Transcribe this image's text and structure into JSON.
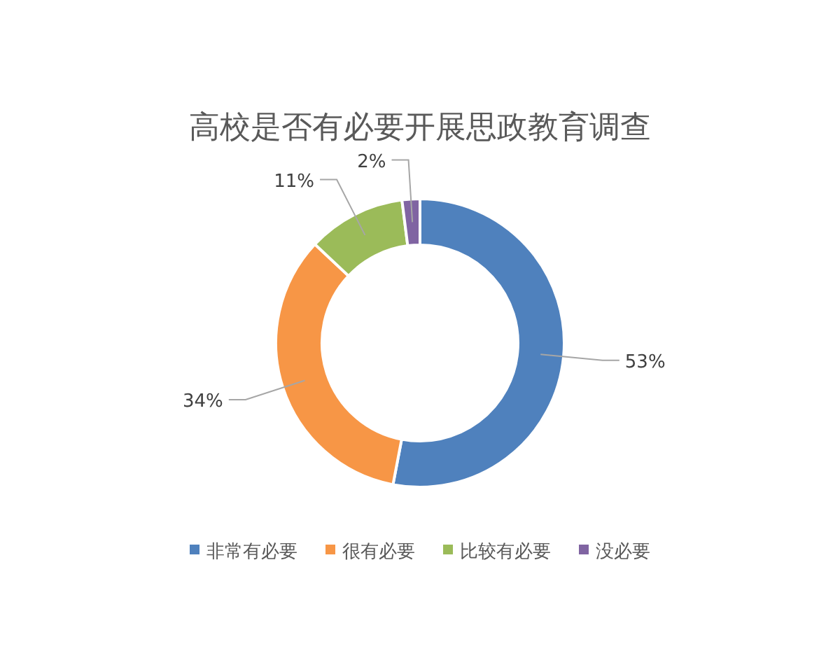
{
  "chart_data": {
    "type": "donut",
    "title": "高校是否有必要开展思政教育调查",
    "categories": [
      "非常有必要",
      "很有必要",
      "比较有必要",
      "没必要"
    ],
    "values": [
      53,
      34,
      11,
      2
    ],
    "colors": [
      "#4f81bd",
      "#f79646",
      "#9bbb59",
      "#8064a2"
    ],
    "value_labels": [
      "53%",
      "34%",
      "11%",
      "2%"
    ],
    "legend": "bottom"
  }
}
